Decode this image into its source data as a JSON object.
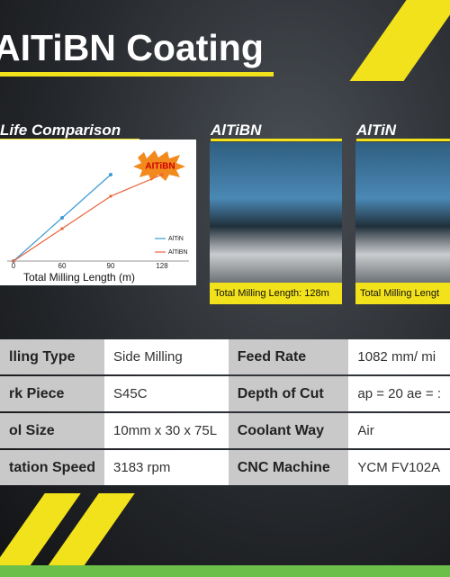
{
  "header": {
    "title": "AITiBN Coating"
  },
  "sections": {
    "chart_heading": "Life Comparison",
    "photo_1": {
      "heading": "AlTiBN",
      "caption": "Total Milling Length: 128m"
    },
    "photo_2": {
      "heading": "AlTiN",
      "caption": "Total Milling Lengt"
    }
  },
  "chart_data": {
    "type": "line",
    "badge": "AITiBN",
    "x_label": "Total Milling Length (m)",
    "categories": [
      "0",
      "60",
      "90",
      "128"
    ],
    "series": [
      {
        "name": "AlTiN",
        "color": "#3d9bd6",
        "values": [
          0,
          4,
          8,
          null
        ]
      },
      {
        "name": "AlTiBN",
        "color": "#e8643a",
        "values": [
          0,
          3,
          6,
          8
        ]
      }
    ],
    "ylim": [
      0,
      10
    ],
    "legend": "lower-right"
  },
  "table": {
    "rows": [
      [
        "lling Type",
        "Side Milling",
        "Feed Rate",
        "1082 mm/ mi"
      ],
      [
        "rk Piece",
        "S45C",
        "Depth of Cut",
        "ap = 20  ae = :"
      ],
      [
        "ol Size",
        "10mm x 30 x 75L",
        "Coolant Way",
        "Air"
      ],
      [
        "tation Speed",
        "3183 rpm",
        "CNC Machine",
        "YCM   FV102A"
      ]
    ]
  }
}
